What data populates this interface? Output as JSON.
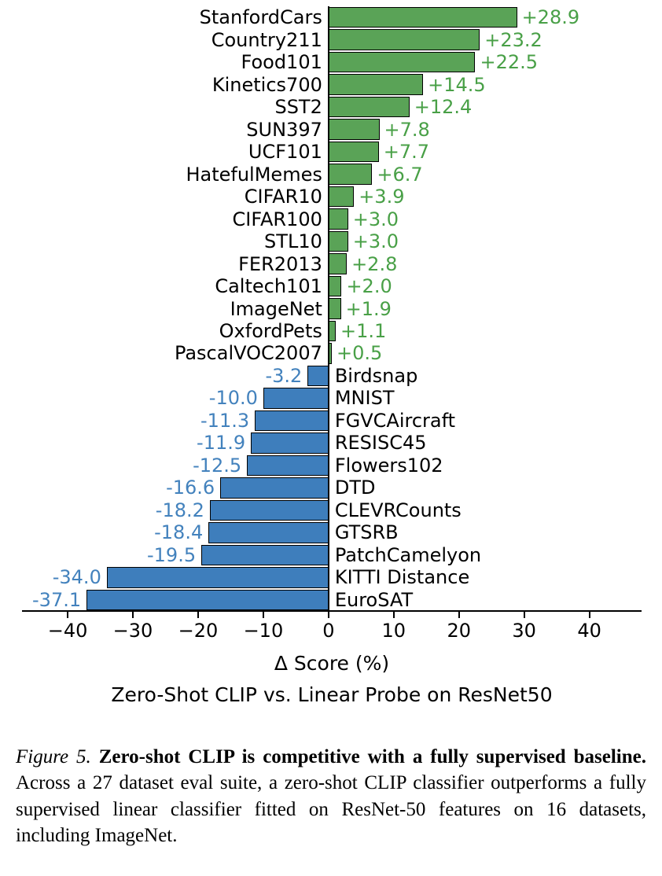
{
  "chart_data": {
    "type": "bar",
    "orientation": "horizontal",
    "xlabel": "Δ Score (%)",
    "subtitle": "Zero-Shot CLIP vs. Linear Probe on ResNet50",
    "xlim": [
      -47,
      48
    ],
    "grid": false,
    "legend": "none",
    "xticks": [
      {
        "v": -40,
        "label": "−40"
      },
      {
        "v": -30,
        "label": "−30"
      },
      {
        "v": -20,
        "label": "−20"
      },
      {
        "v": -10,
        "label": "−10"
      },
      {
        "v": 0,
        "label": "0"
      },
      {
        "v": 10,
        "label": "10"
      },
      {
        "v": 20,
        "label": "20"
      },
      {
        "v": 30,
        "label": "30"
      },
      {
        "v": 40,
        "label": "40"
      }
    ],
    "colors": {
      "positive_bar": "#5aa357",
      "positive_text": "#49a047",
      "negative_bar": "#3e7ebc",
      "negative_text": "#4382bd",
      "bar_edge": "#000000"
    },
    "bars": [
      {
        "label": "StanfordCars",
        "value": 28.9,
        "display": "+28.9"
      },
      {
        "label": "Country211",
        "value": 23.2,
        "display": "+23.2"
      },
      {
        "label": "Food101",
        "value": 22.5,
        "display": "+22.5"
      },
      {
        "label": "Kinetics700",
        "value": 14.5,
        "display": "+14.5"
      },
      {
        "label": "SST2",
        "value": 12.4,
        "display": "+12.4"
      },
      {
        "label": "SUN397",
        "value": 7.8,
        "display": "+7.8"
      },
      {
        "label": "UCF101",
        "value": 7.7,
        "display": "+7.7"
      },
      {
        "label": "HatefulMemes",
        "value": 6.7,
        "display": "+6.7"
      },
      {
        "label": "CIFAR10",
        "value": 3.9,
        "display": "+3.9"
      },
      {
        "label": "CIFAR100",
        "value": 3.0,
        "display": "+3.0"
      },
      {
        "label": "STL10",
        "value": 3.0,
        "display": "+3.0"
      },
      {
        "label": "FER2013",
        "value": 2.8,
        "display": "+2.8"
      },
      {
        "label": "Caltech101",
        "value": 2.0,
        "display": "+2.0"
      },
      {
        "label": "ImageNet",
        "value": 1.9,
        "display": "+1.9"
      },
      {
        "label": "OxfordPets",
        "value": 1.1,
        "display": "+1.1"
      },
      {
        "label": "PascalVOC2007",
        "value": 0.5,
        "display": "+0.5"
      },
      {
        "label": "Birdsnap",
        "value": -3.2,
        "display": "-3.2"
      },
      {
        "label": "MNIST",
        "value": -10.0,
        "display": "-10.0"
      },
      {
        "label": "FGVCAircraft",
        "value": -11.3,
        "display": "-11.3"
      },
      {
        "label": "RESISC45",
        "value": -11.9,
        "display": "-11.9"
      },
      {
        "label": "Flowers102",
        "value": -12.5,
        "display": "-12.5"
      },
      {
        "label": "DTD",
        "value": -16.6,
        "display": "-16.6"
      },
      {
        "label": "CLEVRCounts",
        "value": -18.2,
        "display": "-18.2"
      },
      {
        "label": "GTSRB",
        "value": -18.4,
        "display": "-18.4"
      },
      {
        "label": "PatchCamelyon",
        "value": -19.5,
        "display": "-19.5"
      },
      {
        "label": "KITTI Distance",
        "value": -34.0,
        "display": "-34.0"
      },
      {
        "label": "EuroSAT",
        "value": -37.1,
        "display": "-37.1"
      }
    ]
  },
  "caption": {
    "figure_label": "Figure 5.",
    "bold": "Zero-shot CLIP is competitive with a fully supervised baseline.",
    "body": "Across a 27 dataset eval suite, a zero-shot CLIP classifier outperforms a fully supervised linear classifier fitted on ResNet-50 features on 16 datasets, including ImageNet."
  }
}
